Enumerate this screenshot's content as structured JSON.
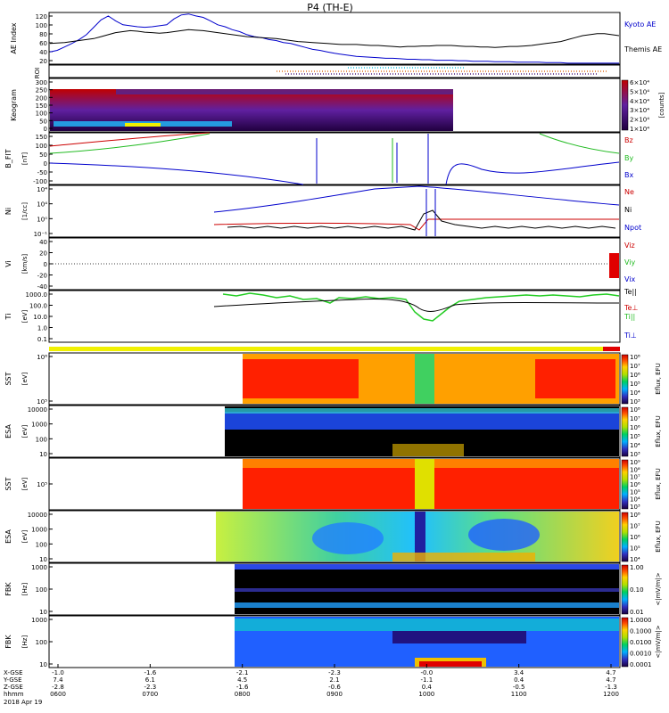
{
  "title": "P4 (TH-E)",
  "chart_data": [
    {
      "id": "ae",
      "type": "line",
      "ylabel": "AE Index",
      "yticks": [
        "120",
        "100",
        "80",
        "60",
        "40",
        "20"
      ],
      "ylim": [
        20,
        125
      ],
      "series": [
        {
          "name": "Kyoto AE",
          "color": "#0000cc",
          "values": [
            45,
            48,
            55,
            62,
            70,
            80,
            95,
            110,
            118,
            108,
            100,
            98,
            96,
            95,
            96,
            98,
            100,
            112,
            120,
            122,
            118,
            115,
            108,
            100,
            96,
            90,
            86,
            80,
            76,
            74,
            70,
            68,
            64,
            62,
            58,
            54,
            50,
            48,
            45,
            42,
            40,
            38,
            36,
            35,
            34,
            33,
            32,
            32,
            31,
            30,
            30,
            29,
            29,
            28,
            28,
            28,
            27,
            27,
            26,
            26,
            26,
            25,
            25,
            25,
            24,
            24,
            24,
            24,
            23,
            23,
            23,
            22,
            22,
            22,
            22,
            22,
            22,
            22,
            22
          ]
        },
        {
          "name": "Themis AE",
          "color": "#000000",
          "values": [
            62,
            63,
            64,
            66,
            68,
            70,
            72,
            76,
            80,
            84,
            86,
            88,
            87,
            85,
            84,
            83,
            84,
            86,
            88,
            90,
            89,
            88,
            86,
            84,
            82,
            80,
            78,
            76,
            75,
            74,
            73,
            72,
            70,
            68,
            66,
            65,
            64,
            63,
            62,
            61,
            60,
            60,
            60,
            59,
            58,
            58,
            57,
            56,
            55,
            56,
            56,
            57,
            57,
            58,
            58,
            58,
            57,
            56,
            56,
            55,
            55,
            54,
            55,
            56,
            56,
            57,
            58,
            60,
            62,
            64,
            66,
            70,
            74,
            78,
            80,
            82,
            82,
            80,
            78
          ]
        }
      ]
    },
    {
      "id": "roi",
      "ylabel": "ROI"
    },
    {
      "id": "kea",
      "type": "heatmap",
      "ylabel": "Keogram",
      "yticks": [
        "300",
        "250",
        "200",
        "150",
        "100",
        "50",
        "0"
      ],
      "colorbar": {
        "ticks": [
          "6×10⁴",
          "5×10⁴",
          "4×10⁴",
          "3×10⁴",
          "2×10⁴",
          "1×10⁴"
        ],
        "label": "[counts]"
      }
    },
    {
      "id": "bfield",
      "type": "line",
      "ylabel": "B_FIT",
      "units": "[nT]",
      "yticks": [
        "150",
        "100",
        "50",
        "0",
        "-50",
        "-100"
      ],
      "ylim": [
        -100,
        150
      ],
      "series": [
        {
          "name": "Bz",
          "color": "#cc0000"
        },
        {
          "name": "By",
          "color": "#22bb22"
        },
        {
          "name": "Bx",
          "color": "#0000cc"
        }
      ]
    },
    {
      "id": "density",
      "type": "line",
      "ylabel": "Ni",
      "units": "[1/cc]",
      "yticks": [
        "10⁴",
        "10⁴",
        "10⁰",
        "10⁻¹"
      ],
      "series": [
        {
          "name": "Ne",
          "color": "#cc0000"
        },
        {
          "name": "Ni",
          "color": "#000000"
        },
        {
          "name": "Npot",
          "color": "#0000cc"
        }
      ]
    },
    {
      "id": "velocity",
      "type": "line",
      "ylabel": "Vi",
      "units": "[km/s]",
      "yticks": [
        "40",
        "20",
        "0",
        "-20",
        "-40"
      ],
      "ylim": [
        -45,
        45
      ],
      "series": [
        {
          "name": "Viz",
          "color": "#cc0000"
        },
        {
          "name": "Viy",
          "color": "#22bb22"
        },
        {
          "name": "Vix",
          "color": "#0000cc"
        }
      ]
    },
    {
      "id": "temp",
      "type": "line",
      "ylabel": "Ti",
      "units": "[eV]",
      "yticks": [
        "1000.0",
        "100.0",
        "10.0",
        "1.0",
        "0.1"
      ],
      "series": [
        {
          "name": "Te||",
          "color": "#000000"
        },
        {
          "name": "Te⊥",
          "color": "#cc0000"
        },
        {
          "name": "Ti||",
          "color": "#22bb22"
        },
        {
          "name": "Ti⊥",
          "color": "#0000cc"
        }
      ]
    },
    {
      "id": "sst_i",
      "type": "heatmap",
      "ylabel": "SST",
      "units": "[eV]",
      "yticks": [
        "10⁶",
        "10⁵"
      ],
      "colorbar": {
        "ticks": [
          "10⁸",
          "10⁷",
          "10⁶",
          "10⁵",
          "10⁴",
          "10³"
        ],
        "label": "Eflux, EFU"
      }
    },
    {
      "id": "esa_i",
      "type": "heatmap",
      "ylabel": "ESA",
      "units": "[eV]",
      "yticks": [
        "10000",
        "1000",
        "100",
        "10"
      ],
      "colorbar": {
        "ticks": [
          "10⁸",
          "10⁷",
          "10⁶",
          "10⁵",
          "10⁴",
          "10³"
        ],
        "label": "Eflux, EFU"
      }
    },
    {
      "id": "sst_e",
      "type": "heatmap",
      "ylabel": "SST",
      "units": "[eV]",
      "yticks": [
        "10⁵"
      ],
      "colorbar": {
        "ticks": [
          "10⁹",
          "10⁸",
          "10⁷",
          "10⁶",
          "10⁵",
          "10⁴",
          "10³"
        ],
        "label": "Eflux, EFU"
      }
    },
    {
      "id": "esa_e",
      "type": "heatmap",
      "ylabel": "ESA",
      "units": "[eV]",
      "yticks": [
        "10000",
        "1000",
        "100",
        "10"
      ],
      "colorbar": {
        "ticks": [
          "10⁸",
          "10⁷",
          "10⁶",
          "10⁵",
          "10⁴"
        ],
        "label": "Eflux, EFU"
      }
    },
    {
      "id": "fbk_e",
      "type": "heatmap",
      "ylabel": "FBK",
      "units": "[Hz]",
      "yticks": [
        "1000",
        "100",
        "10"
      ],
      "colorbar": {
        "ticks": [
          "1.00",
          "0.10",
          "0.01"
        ],
        "label": "<|mV/m|>"
      }
    },
    {
      "id": "fbk_b",
      "type": "heatmap",
      "ylabel": "FBK",
      "units": "[Hz]",
      "yticks": [
        "1000",
        "100",
        "10"
      ],
      "colorbar": {
        "ticks": [
          "1.0000",
          "0.1000",
          "0.0100",
          "0.0010",
          "0.0001"
        ],
        "label": "<|mV/m|>"
      }
    }
  ],
  "xaxis": {
    "row_labels": [
      "X-GSE",
      "Y-GSE",
      "Z-GSE",
      "hhmm",
      "2018 Apr 19"
    ],
    "ticks": [
      {
        "x": "-1.0",
        "y": "7.4",
        "z": "-2.8",
        "t": "0600"
      },
      {
        "x": "-1.6",
        "y": "6.1",
        "z": "-2.3",
        "t": "0700"
      },
      {
        "x": "-2.1",
        "y": "4.5",
        "z": "-1.6",
        "t": "0800"
      },
      {
        "x": "-2.3",
        "y": "2.1",
        "z": "-0.6",
        "t": "0900"
      },
      {
        "x": "-0.0",
        "y": "-1.1",
        "z": "0.4",
        "t": "1000"
      },
      {
        "x": "3.4",
        "y": "0.4",
        "z": "-0.5",
        "t": "1100"
      },
      {
        "x": "4.7",
        "y": "4.7",
        "z": "-1.3",
        "t": "1200"
      }
    ]
  }
}
